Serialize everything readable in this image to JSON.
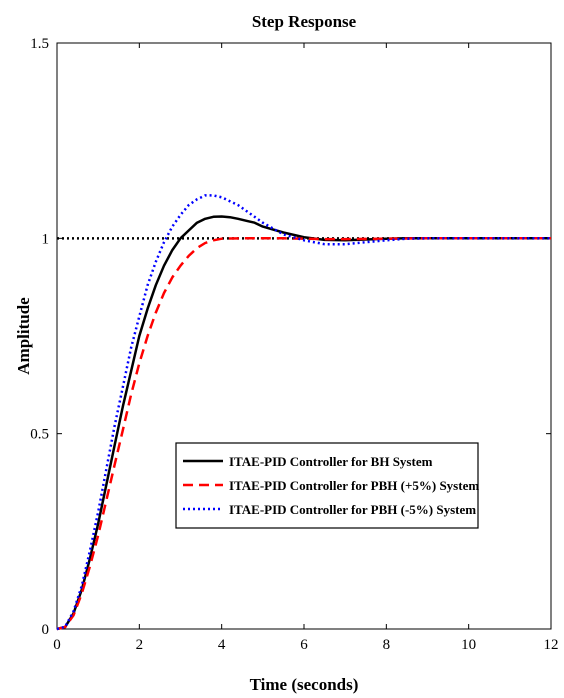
{
  "chart_data": {
    "type": "line",
    "title": "Step Response",
    "xlabel": "Time (seconds)",
    "ylabel": "Amplitude",
    "xlim": [
      0,
      12
    ],
    "ylim": [
      0,
      1.5
    ],
    "x_ticks": [
      "0",
      "2",
      "4",
      "6",
      "8",
      "10",
      "12"
    ],
    "y_ticks": [
      "0",
      "0.5",
      "1",
      "1.5"
    ],
    "grid": false,
    "legend_position": "center-bottom",
    "reference_line": {
      "y": 1,
      "color": "#000000",
      "style": "dotted"
    },
    "series": [
      {
        "name": "ITAE-PID Controller for BH System",
        "color": "#000000",
        "style": "solid",
        "x": [
          0,
          0.2,
          0.4,
          0.6,
          0.8,
          1.0,
          1.2,
          1.4,
          1.6,
          1.8,
          2.0,
          2.2,
          2.4,
          2.6,
          2.8,
          3.0,
          3.2,
          3.4,
          3.6,
          3.8,
          4.0,
          4.2,
          4.4,
          4.6,
          4.8,
          5.0,
          5.5,
          6.0,
          6.5,
          7.0,
          7.5,
          8.0,
          8.5,
          9.0,
          10.0,
          11.0,
          12.0
        ],
        "y": [
          0,
          0.005,
          0.04,
          0.1,
          0.18,
          0.27,
          0.37,
          0.47,
          0.57,
          0.66,
          0.75,
          0.82,
          0.88,
          0.93,
          0.97,
          1.0,
          1.02,
          1.04,
          1.05,
          1.055,
          1.056,
          1.054,
          1.05,
          1.045,
          1.04,
          1.03,
          1.015,
          1.003,
          0.996,
          0.995,
          0.997,
          0.999,
          1.0,
          1.0,
          1.0,
          1.0,
          1.0
        ]
      },
      {
        "name": "ITAE-PID Controller for PBH (+5%) System",
        "color": "#ff0000",
        "style": "dashed",
        "x": [
          0,
          0.2,
          0.4,
          0.6,
          0.8,
          1.0,
          1.2,
          1.4,
          1.6,
          1.8,
          2.0,
          2.2,
          2.4,
          2.6,
          2.8,
          3.0,
          3.2,
          3.4,
          3.6,
          3.8,
          4.0,
          4.5,
          5.0,
          5.5,
          6.0,
          6.5,
          7.0,
          8.0,
          9.0,
          10.0,
          11.0,
          12.0
        ],
        "y": [
          0,
          0.005,
          0.035,
          0.09,
          0.16,
          0.24,
          0.33,
          0.42,
          0.51,
          0.6,
          0.68,
          0.75,
          0.81,
          0.86,
          0.9,
          0.93,
          0.955,
          0.975,
          0.988,
          0.995,
          0.999,
          1.0,
          1.0,
          1.0,
          0.999,
          0.998,
          0.998,
          0.999,
          1.0,
          1.0,
          1.0,
          1.0
        ]
      },
      {
        "name": "ITAE-PID Controller for PBH (-5%) System",
        "color": "#0000ff",
        "style": "dotted",
        "x": [
          0,
          0.2,
          0.4,
          0.6,
          0.8,
          1.0,
          1.2,
          1.4,
          1.6,
          1.8,
          2.0,
          2.2,
          2.4,
          2.6,
          2.8,
          3.0,
          3.2,
          3.4,
          3.6,
          3.8,
          4.0,
          4.2,
          4.4,
          4.6,
          4.8,
          5.0,
          5.5,
          6.0,
          6.5,
          7.0,
          7.5,
          8.0,
          8.5,
          9.0,
          10.0,
          11.0,
          12.0
        ],
        "y": [
          0,
          0.006,
          0.045,
          0.11,
          0.2,
          0.3,
          0.41,
          0.52,
          0.62,
          0.72,
          0.8,
          0.88,
          0.94,
          0.99,
          1.03,
          1.06,
          1.085,
          1.1,
          1.11,
          1.11,
          1.105,
          1.095,
          1.085,
          1.07,
          1.055,
          1.04,
          1.01,
          0.995,
          0.985,
          0.985,
          0.99,
          0.995,
          0.999,
          1.0,
          1.0,
          1.0,
          1.0
        ]
      }
    ]
  }
}
